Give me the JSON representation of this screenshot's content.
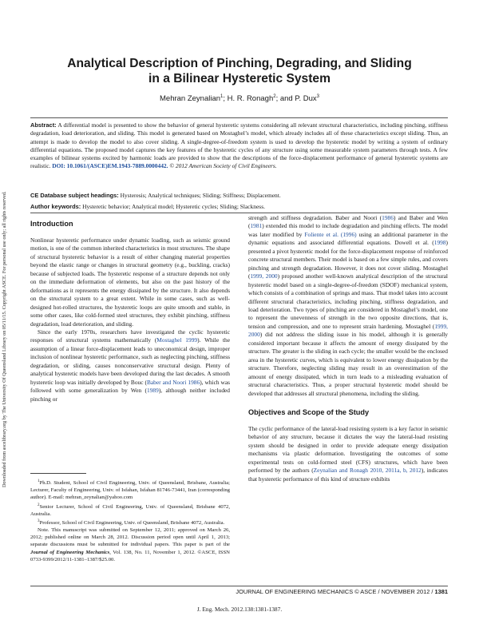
{
  "side_note": "Downloaded from ascelibrary.org by The University Of Queensland Library on 05/11/15. Copyright ASCE. For personal use only; all rights reserved.",
  "title_line1": "Analytical Description of Pinching, Degrading, and Sliding",
  "title_line2": "in a Bilinear Hysteretic System",
  "authors": [
    {
      "name": "Mehran Zeynalian",
      "sup": "1",
      "sep": "; "
    },
    {
      "name": "H. R. Ronagh",
      "sup": "2",
      "sep": "; and "
    },
    {
      "name": "P. Dux",
      "sup": "3",
      "sep": ""
    }
  ],
  "abstract": {
    "label": "Abstract:",
    "text": " A differential model is presented to show the behavior of general hysteretic systems considering all relevant structural characteristics, including pinching, stiffness degradation, load deterioration, and sliding. This model is generated based on Mostaghel’s model, which already includes all of these characteristics except sliding. Thus, an attempt is made to develop the model to also cover sliding. A single-degree-of-freedom system is used to develop the hysteretic model by writing a system of ordinary differential equations. The proposed model captures the key features of the hysteretic cycles of any structure using some measurable system parameters through tests. A few examples of bilinear systems excited by harmonic loads are provided to show that the descriptions of the force-displacement performance of general hysteretic systems are realistic. ",
    "doi": "DOI: 10.1061/(ASCE)EM.1943-7889.0000442.",
    "copyright": " © 2012 American Society of Civil Engineers."
  },
  "ce_headings": {
    "label": "CE Database subject headings:",
    "text": " Hysteresis; Analytical techniques; Sliding; Stiffness; Displacement."
  },
  "author_keywords": {
    "label": "Author keywords:",
    "text": " Hysteretic behavior; Analytical model; Hysteretic cycles; Sliding; Slackness."
  },
  "intro": {
    "heading": "Introduction",
    "p1": "Nonlinear hysteretic performance under dynamic loading, such as seismic ground motion, is one of the common inherited characteristics in most structures. The shape of structural hysteretic behavior is a result of either changing material properties beyond the elastic range or changes in structural geometry (e.g., buckling, cracks) because of subjected loads. The hysteretic response of a structure depends not only on the immediate deformation of elements, but also on the past history of the deformations as it represents the energy dissipated by the structure. It also depends on the structural system to a great extent. While in some cases, such as well-designed hot-rolled structures, the hysteretic loops are quite smooth and stable, in some other cases, like cold-formed steel structures, they exhibit pinching, stiffness degradation, load deterioration, and sliding.",
    "p2a": "Since the early 1970s, researchers have investigated the cyclic hysteretic responses of structural systems mathematically (",
    "p2_cite1": "Mostaghel 1999",
    "p2b": "). While the assumption of a linear force-displacement leads to uneconomical design, improper inclusion of nonlinear hysteretic performance, such as neglecting pinching, stiffness degradation, or sliding, causes nonconservative structural design. Plenty of analytical hysteretic models have been developed during the last decades. A smooth hysteretic loop was initially developed by Bouc (",
    "p2_cite2": "Baber and Noori 1986",
    "p2c": "), which was followed with some generalization by Wen (",
    "p2_cite3": "1989",
    "p2d": "), although neither included pinching or"
  },
  "right_col": {
    "p1a": "strength and stiffness degradation. Baber and Noori (",
    "p1_cite1": "1986",
    "p1b": ") and Baber and Wen (",
    "p1_cite2": "1981",
    "p1c": ") extended this model to include degradation and pinching effects. The model was later modified by ",
    "p1_cite3": "Foliente et al. (1996)",
    "p1d": " using an additional parameter in the dynamic equations and associated differential equations. Dowell et al. (",
    "p1_cite4": "1998",
    "p1e": ") presented a pivot hysteretic model for the force-displacement response of reinforced concrete structural members. Their model is based on a few simple rules, and covers pinching and strength degradation. However, it does not cover sliding. Mostaghel (",
    "p1_cite5": "1999, 2000",
    "p1f": ") proposed another well-known analytical description of the structural hysteretic model based on a single-degree-of-freedom (SDOF) mechanical system, which consists of a combination of springs and mass. That model takes into account different structural characteristics, including pinching, stiffness degradation, and load deterioration. Two types of pinching are considered in Mostaghel’s model, one to represent the unevenness of strength in the two opposite directions, that is, tension and compression, and one to represent strain hardening. Mostaghel (",
    "p1_cite6": "1999, 2000",
    "p1g": ") did not address the sliding issue in his model, although it is generally considered important because it affects the amount of energy dissipated by the structure. The greater is the sliding in each cycle; the smaller would be the enclosed area in the hysteretic curves, which is equivalent to lower energy dissipation by the structure. Therefore, neglecting sliding may result in an overestimation of the amount of energy dissipated, which in turn leads to a misleading evaluation of structural characteristics. Thus, a proper structural hysteretic model should be developed that addresses all structural phenomena, including the sliding.",
    "heading2": "Objectives and Scope of the Study",
    "p2a": "The cyclic performance of the lateral-load resisting system is a key factor in seismic behavior of any structure, because it dictates the way the lateral-load resisting system should be designed in order to provide adequate energy dissipation mechanisms via plastic deformation. Investigating the outcomes of some experimental tests on cold-formed steel (CFS) structures, which have been performed by the authors (",
    "p2_cite": "Zeynalian and Ronagh 2010, 2011a, b, 2012",
    "p2b": "), indicates that hysteretic performance of this kind of structure exhibits"
  },
  "footnotes": {
    "fn1_sup": "1",
    "fn1": "Ph.D. Student, School of Civil Engineering, Univ. of Queensland, Brisbane, Australia; Lecturer, Faculty of Engineering, Univ. of Isfahan, Isfahan 81746-73441, Iran (corresponding author). E-mail: mehran_zeynalian@yahoo.com",
    "fn2_sup": "2",
    "fn2": "Senior Lecturer, School of Civil Engineering, Univ. of Queensland, Brisbane 4072, Australia.",
    "fn3_sup": "3",
    "fn3": "Professor, School of Civil Engineering, Univ. of Queensland, Brisbane 4072, Australia.",
    "note_a": "Note. This manuscript was submitted on September 12, 2011; approved on March 26, 2012; published online on March 28, 2012. Discussion period open until April 1, 2013; separate discussions must be submitted for individual papers. This paper is part of the ",
    "note_journal": "Journal of Engineering Mechanics",
    "note_b": ", Vol. 138, No. 11, November 1, 2012. ©ASCE, ISSN 0733-9399/2012/11-1381–1387/$25.00."
  },
  "running_footer": {
    "text": "JOURNAL OF ENGINEERING MECHANICS © ASCE / NOVEMBER 2012 / ",
    "page": "1381"
  },
  "citation_line": "J. Eng. Mech. 2012.138:1381-1387."
}
